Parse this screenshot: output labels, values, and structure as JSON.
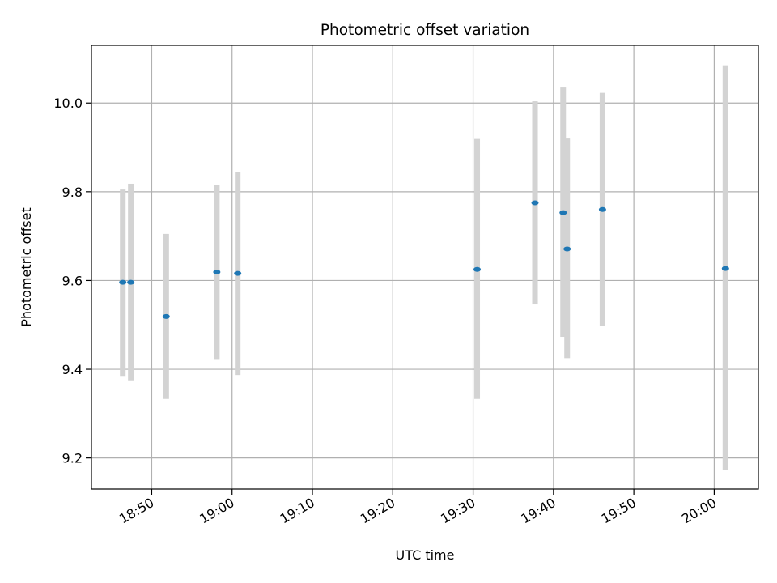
{
  "chart_data": {
    "type": "scatter",
    "title": "Photometric offset variation",
    "xlabel": "UTC time",
    "ylabel": "Photometric offset",
    "xlim": [
      "18:42:30",
      "20:05:30"
    ],
    "ylim": [
      9.13,
      10.13
    ],
    "x_ticks": [
      "18:50",
      "19:00",
      "19:10",
      "19:20",
      "19:30",
      "19:40",
      "19:50",
      "20:00"
    ],
    "y_ticks": [
      "9.2",
      "9.4",
      "9.6",
      "9.8",
      "10.0"
    ],
    "grid": true,
    "legend": "none",
    "series": [
      {
        "marker_color": "#1f77b4",
        "errorbar_color": "#d3d3d3",
        "points": [
          {
            "x": "18:46:24",
            "y": 9.596,
            "low": 9.385,
            "high": 9.805
          },
          {
            "x": "18:47:24",
            "y": 9.596,
            "low": 9.375,
            "high": 9.818
          },
          {
            "x": "18:51:48",
            "y": 9.519,
            "low": 9.333,
            "high": 9.705
          },
          {
            "x": "18:58:06",
            "y": 9.619,
            "low": 9.423,
            "high": 9.815
          },
          {
            "x": "19:00:42",
            "y": 9.616,
            "low": 9.387,
            "high": 9.845
          },
          {
            "x": "19:30:30",
            "y": 9.625,
            "low": 9.333,
            "high": 9.919
          },
          {
            "x": "19:37:42",
            "y": 9.775,
            "low": 9.546,
            "high": 10.004
          },
          {
            "x": "19:41:12",
            "y": 9.753,
            "low": 9.473,
            "high": 10.035
          },
          {
            "x": "19:41:42",
            "y": 9.671,
            "low": 9.425,
            "high": 9.92
          },
          {
            "x": "19:46:06",
            "y": 9.76,
            "low": 9.497,
            "high": 10.023
          },
          {
            "x": "20:01:24",
            "y": 9.627,
            "low": 9.172,
            "high": 10.085
          }
        ]
      }
    ]
  }
}
